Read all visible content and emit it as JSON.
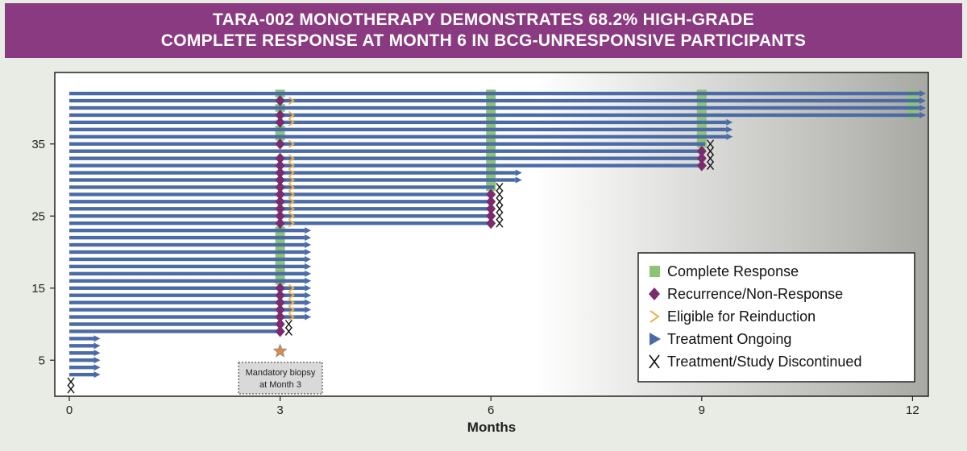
{
  "title": {
    "line1": "TARA-002 MONOTHERAPY DEMONSTRATES 68.2% HIGH-GRADE",
    "line2": "COMPLETE RESPONSE AT MONTH 6 IN BCG-UNRESPONSIVE PARTICIPANTS"
  },
  "colors": {
    "complete_response": "#8dc474",
    "recurrence": "#7a2d6e",
    "eligible": "#f2b04a",
    "ongoing": "#4a6ba6",
    "discontinued": "#111111",
    "banner": "#8a3a80"
  },
  "chart_data": {
    "type": "swimmer",
    "title": "TARA-002 MONOTHERAPY DEMONSTRATES 68.2% HIGH-GRADE COMPLETE RESPONSE AT MONTH 6 IN BCG-UNRESPONSIVE PARTICIPANTS",
    "xlabel": "Months",
    "ylabel": "",
    "xlim": [
      0,
      12.2
    ],
    "ylim": [
      0,
      43
    ],
    "x_ticks": [
      0,
      3,
      6,
      9,
      12
    ],
    "y_ticks": [
      5,
      15,
      25,
      35
    ],
    "legend_position": "bottom-right",
    "legend": [
      {
        "key": "complete_response",
        "label": "Complete Response"
      },
      {
        "key": "recurrence",
        "label": "Recurrence/Non-Response"
      },
      {
        "key": "eligible",
        "label": "Eligible for Reinduction"
      },
      {
        "key": "ongoing",
        "label": "Treatment Ongoing"
      },
      {
        "key": "discontinued",
        "label": "Treatment/Study Discontinued"
      }
    ],
    "annotation": {
      "label_line1": "Mandatory biopsy",
      "label_line2": "at Month 3",
      "x": 3
    },
    "participants": [
      {
        "id": 1,
        "end": 0,
        "cr": [],
        "rec": [],
        "elig": [],
        "disc": 0,
        "ongoing": false
      },
      {
        "id": 2,
        "end": 0,
        "cr": [],
        "rec": [],
        "elig": [],
        "disc": 0,
        "ongoing": false
      },
      {
        "id": 3,
        "end": 0.35,
        "cr": [],
        "rec": [],
        "elig": [],
        "disc": null,
        "ongoing": true
      },
      {
        "id": 4,
        "end": 0.35,
        "cr": [],
        "rec": [],
        "elig": [],
        "disc": null,
        "ongoing": true
      },
      {
        "id": 5,
        "end": 0.35,
        "cr": [],
        "rec": [],
        "elig": [],
        "disc": null,
        "ongoing": true
      },
      {
        "id": 6,
        "end": 0.35,
        "cr": [],
        "rec": [],
        "elig": [],
        "disc": null,
        "ongoing": true
      },
      {
        "id": 7,
        "end": 0.35,
        "cr": [],
        "rec": [],
        "elig": [],
        "disc": null,
        "ongoing": true
      },
      {
        "id": 8,
        "end": 0.35,
        "cr": [],
        "rec": [],
        "elig": [],
        "disc": null,
        "ongoing": true
      },
      {
        "id": 9,
        "end": 3.05,
        "cr": [],
        "rec": [
          3
        ],
        "elig": [],
        "disc": 3.1,
        "ongoing": false
      },
      {
        "id": 10,
        "end": 3.05,
        "cr": [],
        "rec": [
          3
        ],
        "elig": [],
        "disc": 3.1,
        "ongoing": false
      },
      {
        "id": 11,
        "end": 3.35,
        "cr": [],
        "rec": [
          3
        ],
        "elig": [
          3.1
        ],
        "disc": null,
        "ongoing": true
      },
      {
        "id": 12,
        "end": 3.35,
        "cr": [],
        "rec": [
          3
        ],
        "elig": [
          3.1
        ],
        "disc": null,
        "ongoing": true
      },
      {
        "id": 13,
        "end": 3.35,
        "cr": [],
        "rec": [
          3
        ],
        "elig": [
          3.1
        ],
        "disc": null,
        "ongoing": true
      },
      {
        "id": 14,
        "end": 3.35,
        "cr": [],
        "rec": [
          3
        ],
        "elig": [
          3.1
        ],
        "disc": null,
        "ongoing": true
      },
      {
        "id": 15,
        "end": 3.35,
        "cr": [],
        "rec": [
          3
        ],
        "elig": [
          3.1
        ],
        "disc": null,
        "ongoing": true
      },
      {
        "id": 16,
        "end": 3.35,
        "cr": [
          3
        ],
        "rec": [],
        "elig": [],
        "disc": null,
        "ongoing": true
      },
      {
        "id": 17,
        "end": 3.35,
        "cr": [
          3
        ],
        "rec": [],
        "elig": [],
        "disc": null,
        "ongoing": true
      },
      {
        "id": 18,
        "end": 3.35,
        "cr": [
          3
        ],
        "rec": [],
        "elig": [],
        "disc": null,
        "ongoing": true
      },
      {
        "id": 19,
        "end": 3.35,
        "cr": [
          3
        ],
        "rec": [],
        "elig": [],
        "disc": null,
        "ongoing": true
      },
      {
        "id": 20,
        "end": 3.35,
        "cr": [
          3
        ],
        "rec": [],
        "elig": [],
        "disc": null,
        "ongoing": true
      },
      {
        "id": 21,
        "end": 3.35,
        "cr": [
          3
        ],
        "rec": [],
        "elig": [],
        "disc": null,
        "ongoing": true
      },
      {
        "id": 22,
        "end": 3.35,
        "cr": [
          3
        ],
        "rec": [],
        "elig": [],
        "disc": null,
        "ongoing": true
      },
      {
        "id": 23,
        "end": 3.35,
        "cr": [
          3
        ],
        "rec": [],
        "elig": [],
        "disc": null,
        "ongoing": true
      },
      {
        "id": 24,
        "end": 6.05,
        "cr": [],
        "rec": [
          3,
          6
        ],
        "elig": [
          3.1
        ],
        "disc": 6.1,
        "ongoing": false
      },
      {
        "id": 25,
        "end": 6.05,
        "cr": [],
        "rec": [
          3,
          6
        ],
        "elig": [
          3.1
        ],
        "disc": 6.1,
        "ongoing": false
      },
      {
        "id": 26,
        "end": 6.05,
        "cr": [],
        "rec": [
          3,
          6
        ],
        "elig": [
          3.1
        ],
        "disc": 6.1,
        "ongoing": false
      },
      {
        "id": 27,
        "end": 6.05,
        "cr": [],
        "rec": [
          3,
          6
        ],
        "elig": [
          3.1
        ],
        "disc": 6.1,
        "ongoing": false
      },
      {
        "id": 28,
        "end": 6.05,
        "cr": [],
        "rec": [
          3,
          6
        ],
        "elig": [
          3.1
        ],
        "disc": 6.1,
        "ongoing": false
      },
      {
        "id": 29,
        "end": 6.05,
        "cr": [
          6
        ],
        "rec": [
          3
        ],
        "elig": [
          3.1
        ],
        "disc": 6.1,
        "ongoing": false
      },
      {
        "id": 30,
        "end": 6.35,
        "cr": [
          6
        ],
        "rec": [
          3
        ],
        "elig": [
          3.1
        ],
        "disc": null,
        "ongoing": true
      },
      {
        "id": 31,
        "end": 6.35,
        "cr": [
          6
        ],
        "rec": [
          3
        ],
        "elig": [
          3.1
        ],
        "disc": null,
        "ongoing": true
      },
      {
        "id": 32,
        "end": 9.05,
        "cr": [
          6
        ],
        "rec": [
          3,
          9
        ],
        "elig": [
          3.1
        ],
        "disc": 9.1,
        "ongoing": false
      },
      {
        "id": 33,
        "end": 9.05,
        "cr": [
          6
        ],
        "rec": [
          3,
          9
        ],
        "elig": [
          3.1
        ],
        "disc": 9.1,
        "ongoing": false
      },
      {
        "id": 34,
        "end": 9.05,
        "cr": [
          6
        ],
        "rec": [
          9
        ],
        "elig": [],
        "disc": 9.1,
        "ongoing": false
      },
      {
        "id": 35,
        "end": 9.05,
        "cr": [
          6,
          9
        ],
        "rec": [
          3
        ],
        "elig": [
          3.1
        ],
        "disc": 9.1,
        "ongoing": false
      },
      {
        "id": 36,
        "end": 9.35,
        "cr": [
          3,
          6,
          9
        ],
        "rec": [],
        "elig": [],
        "disc": null,
        "ongoing": true
      },
      {
        "id": 37,
        "end": 9.35,
        "cr": [
          3,
          6,
          9
        ],
        "rec": [],
        "elig": [],
        "disc": null,
        "ongoing": true
      },
      {
        "id": 38,
        "end": 9.35,
        "cr": [
          6,
          9
        ],
        "rec": [
          3
        ],
        "elig": [
          3.1
        ],
        "disc": null,
        "ongoing": true
      },
      {
        "id": 39,
        "end": 12.1,
        "cr": [
          6,
          9,
          12
        ],
        "rec": [
          3
        ],
        "elig": [
          3.1
        ],
        "disc": null,
        "ongoing": true
      },
      {
        "id": 40,
        "end": 12.1,
        "cr": [
          3,
          6,
          9,
          12
        ],
        "rec": [],
        "elig": [],
        "disc": null,
        "ongoing": true
      },
      {
        "id": 41,
        "end": 12.1,
        "cr": [
          6,
          9,
          12
        ],
        "rec": [
          3
        ],
        "elig": [
          3.1
        ],
        "disc": null,
        "ongoing": true
      },
      {
        "id": 42,
        "end": 12.1,
        "cr": [
          3,
          6,
          9,
          12
        ],
        "rec": [],
        "elig": [],
        "disc": null,
        "ongoing": true
      }
    ]
  }
}
